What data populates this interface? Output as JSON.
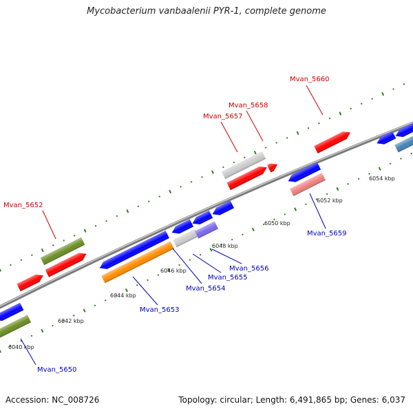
{
  "title": "Mycobacterium vanbaalenii PYR-1, complete genome",
  "footer": {
    "accession": "Accession: NC_008726",
    "summary": "Topology: circular; Length: 6,491,865 bp; Genes: 6,037"
  },
  "colors": {
    "backbone": "#7a7a7a",
    "tick": "#2e7d1f",
    "forward_label": "#cc0000",
    "reverse_label": "#0000bb"
  },
  "kbp_labels": [
    "6040 kbp",
    "6042 kbp",
    "6044 kbp",
    "6046 kbp",
    "6048 kbp",
    "6050 kbp",
    "6052 kbp",
    "6054 kbp"
  ],
  "gene_labels": [
    {
      "text": "Mvan_5650",
      "strand": "reverse"
    },
    {
      "text": "Mvan_5652",
      "strand": "forward"
    },
    {
      "text": "Mvan_5653",
      "strand": "reverse"
    },
    {
      "text": "Mvan_5654",
      "strand": "reverse"
    },
    {
      "text": "Mvan_5655",
      "strand": "reverse"
    },
    {
      "text": "Mvan_5656",
      "strand": "reverse"
    },
    {
      "text": "Mvan_5657",
      "strand": "forward"
    },
    {
      "text": "Mvan_5658",
      "strand": "forward"
    },
    {
      "text": "Mvan_5659",
      "strand": "reverse"
    },
    {
      "text": "Mvan_5660",
      "strand": "forward"
    }
  ],
  "genes": [
    {
      "color": "#ff0000",
      "lane": "forward-inner"
    },
    {
      "color": "#ff0000",
      "lane": "forward-inner"
    },
    {
      "color": "#6b8e23",
      "lane": "forward-outer"
    },
    {
      "color": "#cccccc",
      "lane": "forward-outer"
    },
    {
      "color": "#ff0000",
      "lane": "forward-inner"
    },
    {
      "color": "#ff0000",
      "lane": "forward-inner"
    },
    {
      "color": "#ff0000",
      "lane": "forward-inner"
    },
    {
      "color": "#0000ff",
      "lane": "reverse-inner"
    },
    {
      "color": "#6b8e23",
      "lane": "reverse-outer"
    },
    {
      "color": "#0000ff",
      "lane": "reverse-inner"
    },
    {
      "color": "#ff8c00",
      "lane": "reverse-outer"
    },
    {
      "color": "#cccccc",
      "lane": "reverse-outer"
    },
    {
      "color": "#7b68ee",
      "lane": "reverse-outer"
    },
    {
      "color": "#0000ff",
      "lane": "reverse-inner"
    },
    {
      "color": "#0000ff",
      "lane": "reverse-inner"
    },
    {
      "color": "#0000ff",
      "lane": "reverse-inner"
    },
    {
      "color": "#0000ff",
      "lane": "reverse-inner"
    },
    {
      "color": "#f08080",
      "lane": "reverse-outer"
    },
    {
      "color": "#0000ff",
      "lane": "reverse-inner"
    },
    {
      "color": "#0000ff",
      "lane": "reverse-inner"
    },
    {
      "color": "#4682b4",
      "lane": "reverse-outer"
    }
  ]
}
